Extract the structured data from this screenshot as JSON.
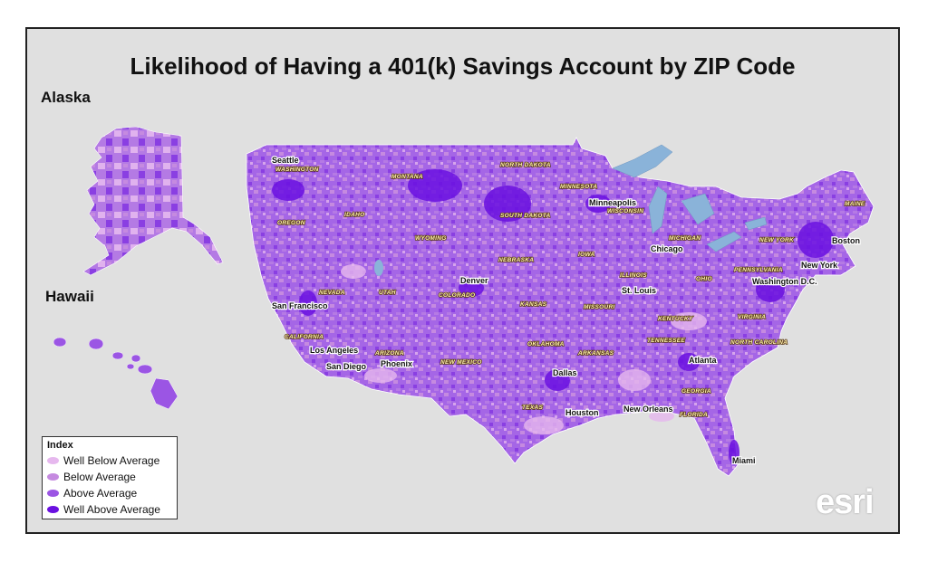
{
  "title": "Likelihood of Having a 401(k) Savings Account by ZIP Code",
  "alaska_label": "Alaska",
  "hawaii_label": "Hawaii",
  "legend": {
    "title": "Index",
    "items": [
      {
        "label": "Well Below Average",
        "color": "#e6b8ee"
      },
      {
        "label": "Below Average",
        "color": "#c58ae0"
      },
      {
        "label": "Above Average",
        "color": "#9b55e4"
      },
      {
        "label": "Well Above Average",
        "color": "#6a10e0"
      }
    ]
  },
  "cities": [
    "Seattle",
    "Minneapolis",
    "Boston",
    "Chicago",
    "New York",
    "San Francisco",
    "Denver",
    "St. Louis",
    "Washington D.C.",
    "Los Angeles",
    "San Diego",
    "Phoenix",
    "Atlanta",
    "Dallas",
    "Houston",
    "New Orleans",
    "Miami"
  ],
  "states": [
    "WASHINGTON",
    "MONTANA",
    "NORTH DAKOTA",
    "MINNESOTA",
    "OREGON",
    "IDAHO",
    "SOUTH DAKOTA",
    "WISCONSIN",
    "MAINE",
    "WYOMING",
    "IOWA",
    "MICHIGAN",
    "NEW YORK",
    "NEBRASKA",
    "NEVADA",
    "UTAH",
    "COLORADO",
    "ILLINOIS",
    "OHIO",
    "PENNSYLVANIA",
    "KANSAS",
    "MISSOURI",
    "KENTUCKY",
    "VIRGINIA",
    "CALIFORNIA",
    "OKLAHOMA",
    "ARKANSAS",
    "TENNESSEE",
    "NORTH CAROLINA",
    "ARIZONA",
    "NEW MEXICO",
    "GEORGIA",
    "TEXAS",
    "FLORIDA"
  ],
  "logo": "esri",
  "colors": {
    "background": "#e0e0e0",
    "water": "#8ab3d9",
    "land_base": "#a566e6"
  }
}
